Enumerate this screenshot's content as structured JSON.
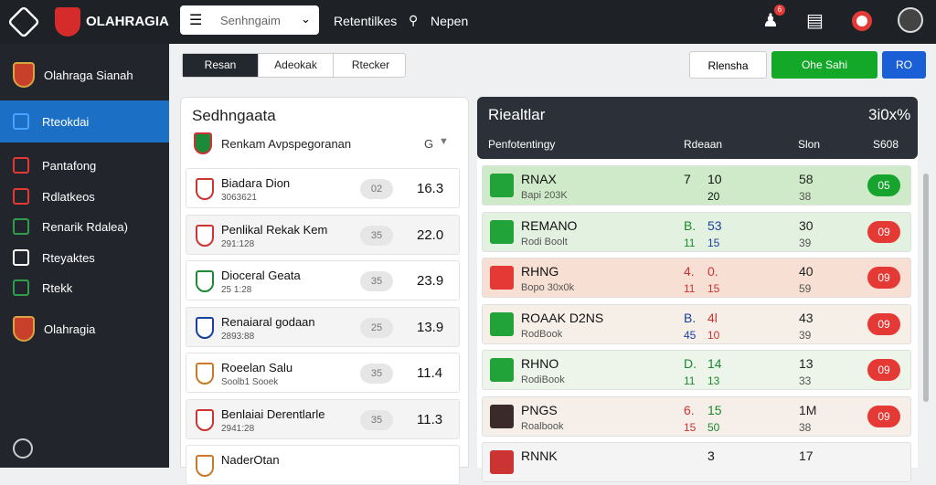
{
  "header": {
    "brand": "OLAHRAGIA",
    "search": "Senhngaim",
    "nav": [
      "Retentilkes",
      "Nepen"
    ],
    "badge": "6"
  },
  "sidebar": {
    "top": "Olahraga Sianah",
    "items": [
      "Rteokdai",
      "Pantafong",
      "Rdlatkeos",
      "Renarik Rdalea)",
      "Rteyaktes",
      "Rtekk"
    ],
    "bottom": "Olahragia"
  },
  "tabs": [
    "Resan",
    "Adeokak",
    "Rtecker"
  ],
  "actions": [
    "Rlensha",
    "Ohe Sahi",
    "RO"
  ],
  "left_panel": {
    "title": "Sedhngaata",
    "subtitle": "Renkam Avpspegoranan",
    "filter": "G",
    "rows": [
      [
        "Biadara Dion",
        "3063621",
        "02",
        "16.3"
      ],
      [
        "Penlikal Rekak Kem",
        "291:128",
        "35",
        "22.0"
      ],
      [
        "Dioceral Geata",
        "25 1:28",
        "35",
        "23.9"
      ],
      [
        "Renaiaral godaan",
        "2893:88",
        "25",
        "13.9"
      ],
      [
        "Roeelan Salu",
        "Soolb1 Sooek",
        "35",
        "11.4"
      ],
      [
        "Benlaiai Derentlarle",
        "2941:28",
        "35",
        "11.3"
      ],
      [
        "NaderOtan"
      ]
    ]
  },
  "right_panel": {
    "title": "Riealtlar",
    "total": "3i0x%",
    "columns": [
      "Penfotentingy",
      "Rdeaan",
      "Slon",
      "S608"
    ],
    "rows": [
      [
        "RNAX",
        "Bapi 203K",
        "7",
        "10",
        "",
        "20",
        "58",
        "38",
        "05"
      ],
      [
        "REMANO",
        "Rodi Boolt",
        "B.",
        "53",
        "11",
        "15",
        "30",
        "39",
        "09"
      ],
      [
        "RHNG",
        "Bopo 30x0k",
        "4.",
        "0.",
        "11",
        "15",
        "40",
        "59",
        "09"
      ],
      [
        "ROAAK D2NS",
        "RodBook",
        "B.",
        "4l",
        "45",
        "10",
        "43",
        "39",
        "09"
      ],
      [
        "RHNO",
        "RodiBook",
        "D.",
        "14",
        "11",
        "13",
        "13",
        "33",
        "09"
      ],
      [
        "PNGS",
        "Roalbook",
        "6.",
        "15",
        "15",
        "50",
        "1M",
        "38",
        "09"
      ],
      [
        "RNNK",
        "",
        "",
        "3",
        "",
        "",
        "17"
      ]
    ]
  }
}
